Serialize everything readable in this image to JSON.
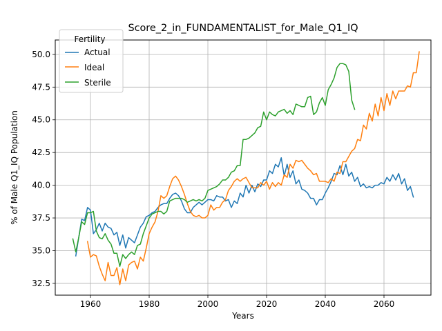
{
  "chart_data": {
    "type": "line",
    "title": "Score_2_in_FUNDAMENTALIST_for_Male_Q1_IQ",
    "xlabel": "Years",
    "ylabel": "% of Male Q1_IQ Population",
    "xlim": [
      1948,
      2076
    ],
    "ylim": [
      31.6,
      51.1
    ],
    "xticks": [
      1960,
      1980,
      2000,
      2020,
      2040,
      2060
    ],
    "yticks": [
      32.5,
      35.0,
      37.5,
      40.0,
      42.5,
      45.0,
      47.5,
      50.0
    ],
    "ytick_labels": [
      "32.5",
      "35.0",
      "37.5",
      "40.0",
      "42.5",
      "45.0",
      "47.5",
      "50.0"
    ],
    "grid": true,
    "legend": {
      "title": "Fertility",
      "placement": "top-left"
    },
    "series": [
      {
        "name": "Actual",
        "color": "#1f77b4",
        "x_start": 1955,
        "values": [
          34.6,
          36.0,
          37.4,
          37.3,
          38.3,
          38.1,
          36.3,
          36.6,
          37.1,
          36.5,
          37.1,
          36.8,
          36.7,
          36.2,
          36.4,
          35.4,
          36.2,
          35.2,
          36.0,
          35.8,
          35.6,
          36.2,
          36.8,
          37.1,
          37.6,
          37.7,
          37.9,
          38.0,
          38.3,
          38.5,
          38.6,
          38.6,
          39.0,
          39.3,
          39.4,
          39.2,
          38.8,
          38.2,
          37.9,
          37.9,
          38.3,
          38.5,
          38.7,
          38.5,
          38.7,
          38.9,
          38.9,
          38.8,
          39.2,
          39.1,
          39.1,
          38.8,
          38.9,
          38.3,
          38.8,
          38.6,
          39.4,
          39.1,
          40.0,
          39.4,
          40.0,
          39.5,
          40.1,
          39.9,
          40.4,
          40.4,
          41.1,
          40.9,
          41.6,
          41.4,
          42.1,
          40.7,
          41.6,
          40.6,
          41.1,
          40.1,
          40.4,
          39.7,
          39.6,
          39.4,
          39.0,
          39.0,
          38.5,
          38.9,
          38.9,
          39.4,
          39.8,
          40.3,
          40.9,
          40.8,
          41.5,
          40.8,
          41.6,
          40.7,
          41.0,
          40.3,
          40.6,
          39.9,
          40.1,
          39.8,
          39.9,
          39.8,
          40.0,
          40.0,
          40.2,
          40.1,
          40.6,
          40.3,
          40.8,
          40.4,
          40.9,
          40.1,
          40.5,
          39.6,
          39.9,
          39.1
        ]
      },
      {
        "name": "Ideal",
        "color": "#ff7f0e",
        "x_start": 1959,
        "values": [
          35.7,
          34.5,
          34.7,
          34.6,
          33.8,
          33.2,
          32.7,
          34.1,
          33.1,
          33.1,
          33.7,
          32.4,
          33.6,
          32.7,
          33.9,
          34.1,
          34.2,
          33.6,
          34.5,
          34.2,
          35.2,
          36.3,
          36.8,
          37.2,
          38.0,
          39.2,
          39.0,
          39.2,
          39.9,
          40.5,
          40.7,
          40.4,
          39.9,
          39.3,
          38.6,
          38.0,
          37.7,
          37.6,
          37.7,
          37.5,
          37.5,
          37.7,
          38.5,
          38.1,
          38.3,
          38.3,
          38.7,
          38.9,
          39.6,
          39.9,
          40.3,
          40.5,
          40.3,
          40.5,
          40.6,
          40.2,
          39.8,
          39.8,
          39.8,
          40.2,
          40.0,
          40.3,
          39.7,
          40.2,
          39.9,
          40.2,
          40.0,
          40.8,
          40.6,
          41.6,
          41.3,
          41.9,
          41.8,
          41.9,
          41.6,
          41.3,
          41.1,
          40.8,
          40.9,
          40.3,
          40.3,
          40.3,
          40.2,
          40.5,
          40.3,
          41.0,
          40.9,
          41.8,
          41.8,
          42.2,
          42.6,
          42.8,
          43.5,
          43.4,
          44.6,
          44.3,
          45.5,
          44.9,
          46.2,
          45.3,
          46.7,
          45.7,
          47.0,
          46.1,
          47.2,
          46.6,
          47.2,
          47.2,
          47.2,
          47.6,
          47.5,
          48.6,
          48.6,
          50.2
        ]
      },
      {
        "name": "Sterile",
        "color": "#2ca02c",
        "x_start": 1954,
        "values": [
          35.9,
          34.9,
          36.0,
          37.2,
          37.0,
          37.9,
          37.9,
          38.0,
          36.5,
          36.0,
          35.9,
          36.3,
          35.8,
          35.5,
          34.8,
          34.8,
          33.8,
          34.7,
          34.4,
          34.7,
          34.9,
          34.7,
          35.4,
          35.5,
          36.3,
          36.9,
          37.5,
          37.8,
          37.9,
          38.0,
          38.0,
          37.8,
          38.0,
          38.8,
          38.9,
          39.0,
          39.0,
          39.0,
          38.9,
          38.7,
          38.8,
          38.9,
          38.8,
          38.9,
          38.8,
          39.0,
          39.6,
          39.7,
          39.8,
          39.9,
          40.1,
          40.4,
          40.4,
          40.6,
          41.0,
          41.1,
          41.5,
          41.5,
          43.5,
          43.5,
          43.6,
          43.8,
          44.0,
          44.4,
          44.5,
          45.6,
          45.0,
          45.6,
          45.4,
          45.3,
          45.6,
          45.7,
          45.8,
          45.5,
          45.7,
          45.4,
          46.2,
          46.1,
          46.0,
          46.0,
          46.7,
          46.8,
          45.4,
          45.6,
          46.3,
          46.7,
          46.1,
          47.3,
          47.7,
          48.2,
          49.0,
          49.3,
          49.3,
          49.2,
          48.7,
          46.5,
          45.8
        ]
      }
    ]
  }
}
